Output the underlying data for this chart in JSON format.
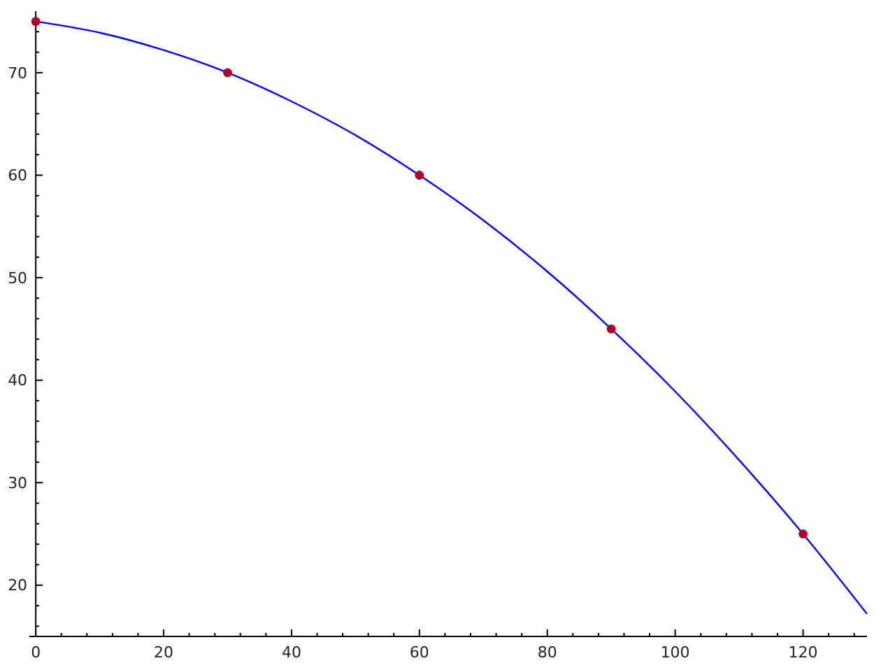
{
  "chart_data": {
    "type": "line",
    "xlim": [
      -1,
      130
    ],
    "ylim": [
      15,
      76
    ],
    "xticks": [
      0,
      {
        "value": 4,
        "label": null
      },
      {
        "value": 8,
        "label": null
      },
      {
        "value": 12,
        "label": null
      },
      {
        "value": 16,
        "label": null
      },
      20,
      {
        "value": 24,
        "label": null
      },
      {
        "value": 28,
        "label": null
      },
      {
        "value": 32,
        "label": null
      },
      {
        "value": 36,
        "label": null
      },
      40,
      {
        "value": 44,
        "label": null
      },
      {
        "value": 48,
        "label": null
      },
      {
        "value": 52,
        "label": null
      },
      {
        "value": 56,
        "label": null
      },
      60,
      {
        "value": 64,
        "label": null
      },
      {
        "value": 68,
        "label": null
      },
      {
        "value": 72,
        "label": null
      },
      {
        "value": 76,
        "label": null
      },
      80,
      {
        "value": 84,
        "label": null
      },
      {
        "value": 88,
        "label": null
      },
      {
        "value": 92,
        "label": null
      },
      {
        "value": 96,
        "label": null
      },
      100,
      {
        "value": 104,
        "label": null
      },
      {
        "value": 108,
        "label": null
      },
      {
        "value": 112,
        "label": null
      },
      {
        "value": 116,
        "label": null
      },
      120,
      {
        "value": 124,
        "label": null
      },
      {
        "value": 128,
        "label": null
      }
    ],
    "yticks": [
      {
        "value": 16,
        "label": null
      },
      {
        "value": 18,
        "label": null
      },
      20,
      {
        "value": 22,
        "label": null
      },
      {
        "value": 24,
        "label": null
      },
      {
        "value": 26,
        "label": null
      },
      {
        "value": 28,
        "label": null
      },
      30,
      {
        "value": 32,
        "label": null
      },
      {
        "value": 34,
        "label": null
      },
      {
        "value": 36,
        "label": null
      },
      {
        "value": 38,
        "label": null
      },
      40,
      {
        "value": 42,
        "label": null
      },
      {
        "value": 44,
        "label": null
      },
      {
        "value": 46,
        "label": null
      },
      {
        "value": 48,
        "label": null
      },
      50,
      {
        "value": 52,
        "label": null
      },
      {
        "value": 54,
        "label": null
      },
      {
        "value": 56,
        "label": null
      },
      {
        "value": 58,
        "label": null
      },
      60,
      {
        "value": 62,
        "label": null
      },
      {
        "value": 64,
        "label": null
      },
      {
        "value": 66,
        "label": null
      },
      {
        "value": 68,
        "label": null
      },
      70,
      {
        "value": 72,
        "label": null
      },
      {
        "value": 74,
        "label": null
      }
    ],
    "grid": false,
    "series": [
      {
        "color": "#0000ff",
        "marker": "none",
        "line_style": "solid",
        "x": [
          0,
          10,
          20,
          30,
          40,
          50,
          60,
          70,
          80,
          90,
          100,
          110,
          120,
          130
        ],
        "values": [
          75,
          73.9,
          72.2,
          70,
          67.2,
          63.9,
          60,
          55.6,
          50.6,
          45,
          38.9,
          32.2,
          25,
          17.2
        ]
      },
      {
        "type": "scatter",
        "color": "#b0002a",
        "marker": "circle",
        "x": [
          0,
          30,
          60,
          90,
          120
        ],
        "values": [
          75,
          70,
          60,
          45,
          25
        ]
      }
    ]
  }
}
